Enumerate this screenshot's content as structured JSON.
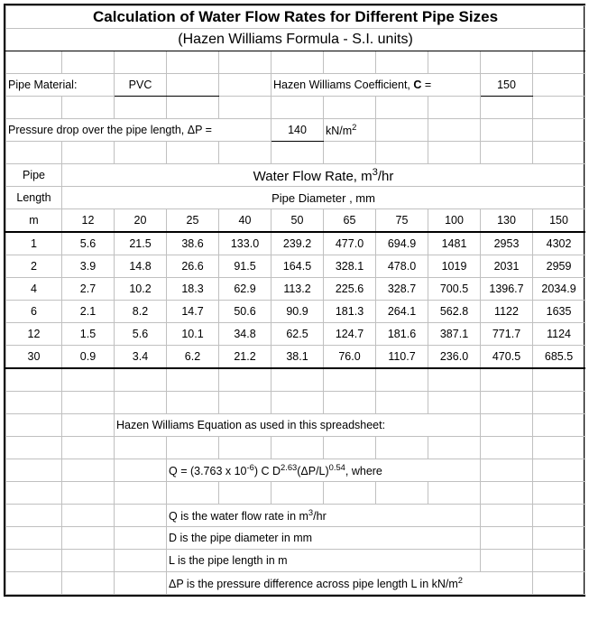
{
  "title_line1": "Calculation of Water Flow Rates for Different Pipe Sizes",
  "title_line2": "(Hazen Williams Formula  -  S.I. units)",
  "labels": {
    "pipe_material": "Pipe Material:",
    "pipe_material_value": "PVC",
    "hw_coeff_pre": "Hazen Williams Coefficient, ",
    "hw_coeff_sym": "C",
    "hw_coeff_eq": " =",
    "hw_coeff_value": "150",
    "pressure_drop_label": "Pressure drop over the pipe length, ΔP =",
    "pressure_drop_value": "140",
    "pressure_drop_unit_pre": "kN/m",
    "pressure_drop_unit_sup": "2",
    "flow_rate_header_pre": "Water Flow Rate, m",
    "flow_rate_header_sup": "3",
    "flow_rate_header_post": "/hr",
    "diameter_header": "Pipe Diameter , mm",
    "pipe_col": "Pipe",
    "length_col": "Length",
    "length_unit": "m"
  },
  "diameters": [
    "12",
    "20",
    "25",
    "40",
    "50",
    "65",
    "75",
    "100",
    "130",
    "150"
  ],
  "lengths": [
    "1",
    "2",
    "4",
    "6",
    "12",
    "30"
  ],
  "flow": [
    [
      "5.6",
      "21.5",
      "38.6",
      "133.0",
      "239.2",
      "477.0",
      "694.9",
      "1481",
      "2953",
      "4302"
    ],
    [
      "3.9",
      "14.8",
      "26.6",
      "91.5",
      "164.5",
      "328.1",
      "478.0",
      "1019",
      "2031",
      "2959"
    ],
    [
      "2.7",
      "10.2",
      "18.3",
      "62.9",
      "113.2",
      "225.6",
      "328.7",
      "700.5",
      "1396.7",
      "2034.9"
    ],
    [
      "2.1",
      "8.2",
      "14.7",
      "50.6",
      "90.9",
      "181.3",
      "264.1",
      "562.8",
      "1122",
      "1635"
    ],
    [
      "1.5",
      "5.6",
      "10.1",
      "34.8",
      "62.5",
      "124.7",
      "181.6",
      "387.1",
      "771.7",
      "1124"
    ],
    [
      "0.9",
      "3.4",
      "6.2",
      "21.2",
      "38.1",
      "76.0",
      "110.7",
      "236.0",
      "470.5",
      "685.5"
    ]
  ],
  "notes": {
    "intro": "Hazen Williams Equation as used in this spreadsheet:",
    "eq_pre": "Q = (3.763 x 10",
    "eq_exp1": "-6",
    "eq_mid1": ") C D",
    "eq_exp2": "2.63",
    "eq_mid2": "(ΔP/L)",
    "eq_exp3": "0.54",
    "eq_post": ", where",
    "q_pre": "Q is the water flow rate in m",
    "q_sup": "3",
    "q_post": "/hr",
    "d": "D is the pipe diameter in mm",
    "l": "L is the pipe length in m",
    "dp_pre": "ΔP is the pressure difference across pipe length L in kN/m",
    "dp_sup": "2"
  }
}
